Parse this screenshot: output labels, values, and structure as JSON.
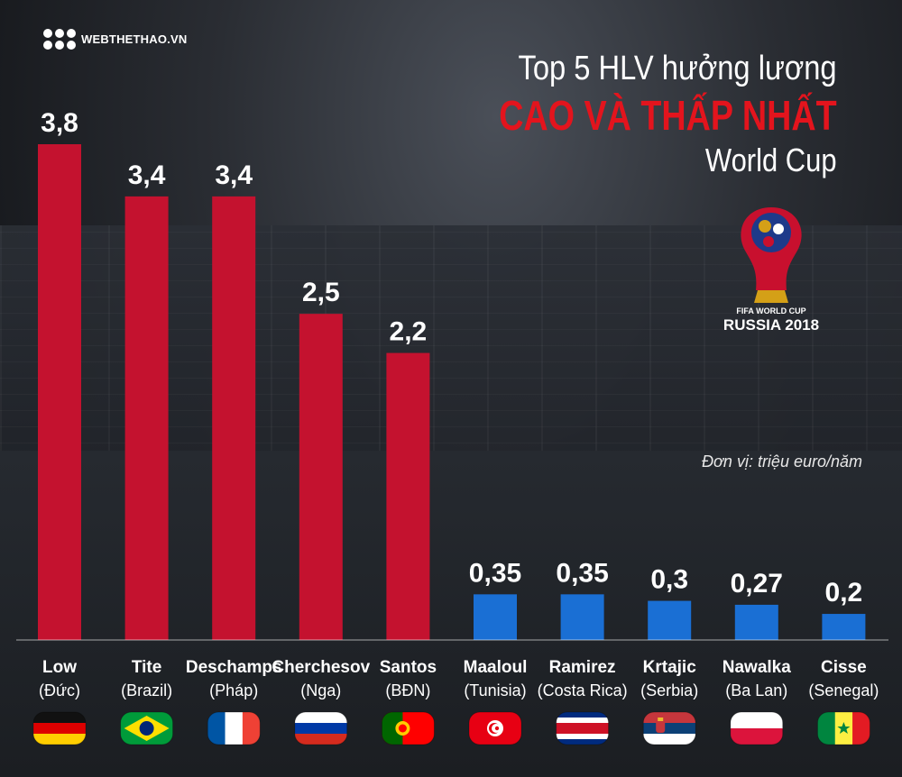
{
  "brand": {
    "logo_text": "WEBTHETHAO.VN"
  },
  "title": {
    "line1": "Top 5 HLV hưởng lương",
    "line2": "CAO VÀ THẤP NHẤT",
    "line3": "World Cup"
  },
  "emblem": {
    "line1": "FIFA WORLD CUP",
    "line2": "RUSSIA 2018"
  },
  "unit_note": "Đơn vị: triệu euro/năm",
  "colors": {
    "high": "#c4122f",
    "low": "#1a6fd4",
    "title_accent": "#e3141d"
  },
  "chart_data": {
    "type": "bar",
    "value_labels": [
      "3,8",
      "3,4",
      "3,4",
      "2,5",
      "2,2",
      "0,35",
      "0,35",
      "0,3",
      "0,27",
      "0,2"
    ],
    "categories": [
      "Low",
      "Tite",
      "Deschamps",
      "Cherchesov",
      "Santos",
      "Maaloul",
      "Ramirez",
      "Krtajic",
      "Nawalka",
      "Cisse"
    ],
    "countries": [
      "(Đức)",
      "(Brazil)",
      "(Pháp)",
      "(Nga)",
      "(BĐN)",
      "(Tunisia)",
      "(Costa Rica)",
      "(Serbia)",
      "(Ba Lan)",
      "(Senegal)"
    ],
    "values": [
      3.8,
      3.4,
      3.4,
      2.5,
      2.2,
      0.35,
      0.35,
      0.3,
      0.27,
      0.2
    ],
    "groups": [
      "high",
      "high",
      "high",
      "high",
      "high",
      "low",
      "low",
      "low",
      "low",
      "low"
    ],
    "flags": [
      "germany-flag",
      "brazil-flag",
      "france-flag",
      "russia-flag",
      "portugal-flag",
      "tunisia-flag",
      "costa-rica-flag",
      "serbia-flag",
      "poland-flag",
      "senegal-flag"
    ],
    "ylim": [
      0,
      3.8
    ],
    "grid": false,
    "legend": "none"
  }
}
